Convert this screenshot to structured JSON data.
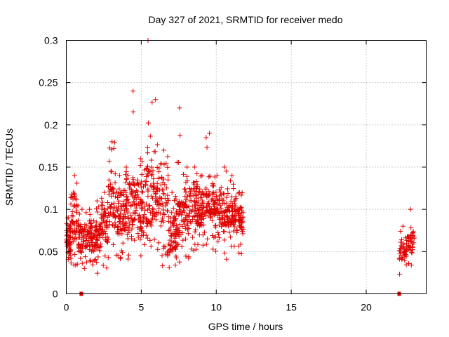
{
  "chart_data": {
    "type": "scatter",
    "title": "Day 327 of 2021, SRMTID for receiver medo",
    "xlabel": "GPS time / hours",
    "ylabel": "SRMTID / TECUs",
    "xlim": [
      0,
      24
    ],
    "ylim": [
      0,
      0.3
    ],
    "xticks": [
      0,
      5,
      10,
      15,
      20
    ],
    "xtick_labels": [
      "0",
      "5",
      "10",
      "15",
      "20"
    ],
    "yticks": [
      0,
      0.05,
      0.1,
      0.15,
      0.2,
      0.25,
      0.3
    ],
    "ytick_labels": [
      "0",
      "0.05",
      "0.1",
      "0.15",
      "0.2",
      "0.25",
      "0.3"
    ],
    "grid": true,
    "marker": "+",
    "color": "#e00000",
    "series": [
      {
        "name": "SRMTID",
        "description": "dense scatter of red + markers; hourly bins summarised as [hour, min, typical low, typical high, max]",
        "profile": [
          [
            0.0,
            0.04,
            0.05,
            0.08,
            0.09
          ],
          [
            0.3,
            0.03,
            0.06,
            0.12,
            0.14
          ],
          [
            0.8,
            0.03,
            0.05,
            0.08,
            0.1
          ],
          [
            1.3,
            0.03,
            0.05,
            0.08,
            0.1
          ],
          [
            1.8,
            0.02,
            0.05,
            0.08,
            0.11
          ],
          [
            2.3,
            0.03,
            0.06,
            0.1,
            0.12
          ],
          [
            2.8,
            0.05,
            0.08,
            0.13,
            0.18
          ],
          [
            3.3,
            0.04,
            0.07,
            0.12,
            0.14
          ],
          [
            3.8,
            0.04,
            0.07,
            0.12,
            0.15
          ],
          [
            4.2,
            0.05,
            0.08,
            0.13,
            0.24
          ],
          [
            4.7,
            0.04,
            0.07,
            0.13,
            0.16
          ],
          [
            5.2,
            0.05,
            0.08,
            0.15,
            0.3
          ],
          [
            5.7,
            0.05,
            0.09,
            0.15,
            0.23
          ],
          [
            6.2,
            0.03,
            0.08,
            0.14,
            0.17
          ],
          [
            6.8,
            0.03,
            0.05,
            0.09,
            0.12
          ],
          [
            7.3,
            0.03,
            0.06,
            0.11,
            0.22
          ],
          [
            7.8,
            0.04,
            0.07,
            0.12,
            0.15
          ],
          [
            8.3,
            0.05,
            0.08,
            0.13,
            0.15
          ],
          [
            8.8,
            0.05,
            0.08,
            0.12,
            0.14
          ],
          [
            9.3,
            0.05,
            0.09,
            0.13,
            0.19
          ],
          [
            9.8,
            0.05,
            0.08,
            0.12,
            0.14
          ],
          [
            10.3,
            0.04,
            0.08,
            0.12,
            0.15
          ],
          [
            10.8,
            0.05,
            0.08,
            0.11,
            0.14
          ],
          [
            11.3,
            0.03,
            0.07,
            0.11,
            0.12
          ],
          [
            22.2,
            0.02,
            0.04,
            0.06,
            0.08
          ],
          [
            22.7,
            0.03,
            0.05,
            0.07,
            0.1
          ]
        ],
        "zero_points": [
          {
            "x": 1.0,
            "y": 0
          },
          {
            "x": 22.2,
            "y": 0
          }
        ]
      }
    ]
  }
}
